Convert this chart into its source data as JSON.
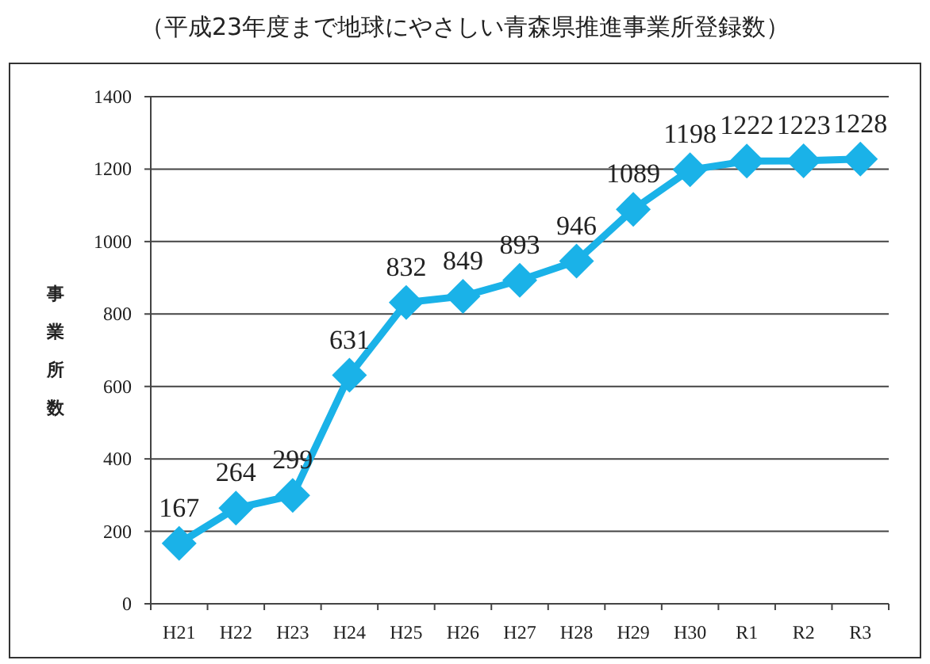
{
  "chart_data": {
    "type": "line",
    "title": "（平成23年度まで地球にやさしい青森県推進事業所登録数）",
    "ylabel": "事業所数",
    "categories": [
      "H21",
      "H22",
      "H23",
      "H24",
      "H25",
      "H26",
      "H27",
      "H28",
      "H29",
      "H30",
      "R1",
      "R2",
      "R3"
    ],
    "values": [
      167,
      264,
      299,
      631,
      832,
      849,
      893,
      946,
      1089,
      1198,
      1222,
      1223,
      1228
    ],
    "color": "#1ab2e8",
    "ylim": [
      0,
      1400
    ],
    "yticks": [
      0,
      200,
      400,
      600,
      800,
      1000,
      1200,
      1400
    ],
    "grid": "y",
    "marker": "diamond",
    "line_style": "solid",
    "data_labels": true
  }
}
